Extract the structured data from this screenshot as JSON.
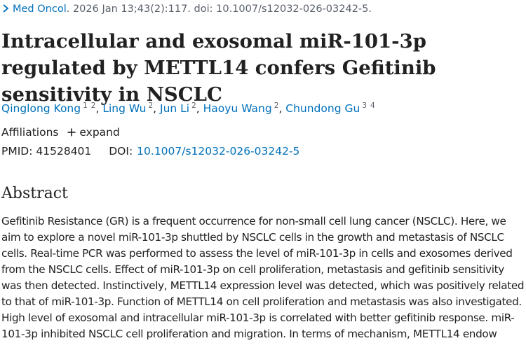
{
  "citation": {
    "journal": "Med Oncol",
    "details": ". 2026 Jan 13;43(2):117. doi: 10.1007/s12032-026-03242-5."
  },
  "article": {
    "title": "Intracellular and exosomal miR-101-3p regulated by METTL14 confers Gefitinib sensitivity in NSCLC"
  },
  "authors": [
    {
      "name": "Qinglong Kong",
      "affiliations": [
        "1",
        "2"
      ]
    },
    {
      "name": "Ling Wu",
      "affiliations": [
        "2"
      ]
    },
    {
      "name": "Jun Li",
      "affiliations": [
        "2"
      ]
    },
    {
      "name": "Haoyu Wang",
      "affiliations": [
        "2"
      ]
    },
    {
      "name": "Chundong Gu",
      "affiliations": [
        "3",
        "4"
      ]
    }
  ],
  "affiliations_label": "Affiliations",
  "expand_label": "expand",
  "ids": {
    "pmid_label": "PMID:",
    "pmid": "41528401",
    "doi_label": "DOI:",
    "doi": "10.1007/s12032-026-03242-5"
  },
  "abstract": {
    "heading": "Abstract",
    "lines": [
      "Gefitinib Resistance (GR) is a frequent occurrence for non-small cell lung cancer (NSCLC). Here, we",
      "aim to explore a novel miR-101-3p shuttled by NSCLC cells in the growth and metastasis of NSCLC",
      "cells. Real-time PCR was performed to assess the level of miR-101-3p in cells and exosomes derived",
      "from the NSCLC cells. Effect of miR-101-3p on cell proliferation, metastasis and gefitinib sensitivity",
      "was then detected. Instinctively, METTL14 expression level was detected, which was positively related",
      "to that of miR-101-3p. Function of METTL14 on cell proliferation and metastasis was also investigated.",
      "High level of exosomal and intracellular miR-101-3p is correlated with better gefitinib response. miR-",
      "101-3p inhibited NSCLC cell proliferation and migration. In terms of mechanism, METTL14 endow"
    ]
  },
  "colors": {
    "link": "#0071bc",
    "text": "#212121",
    "muted": "#5b616b"
  },
  "icons": {
    "citation": "chevron-right-icon",
    "expand": "plus-icon"
  }
}
